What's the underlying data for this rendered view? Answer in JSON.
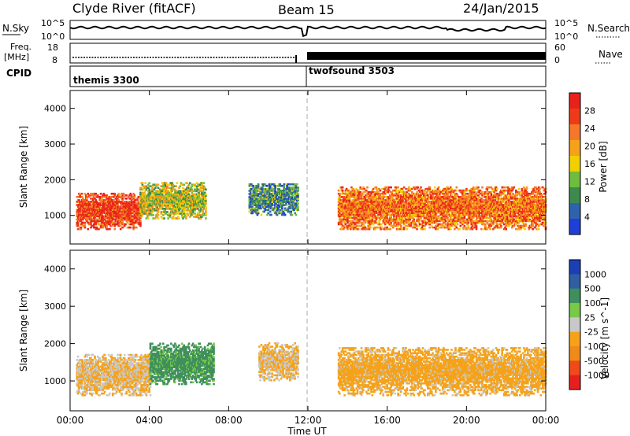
{
  "header": {
    "station": "Clyde River (fitACF)",
    "beam": "Beam 15",
    "date": "24/Jan/2015"
  },
  "noise_panel": {
    "left_label": "N.Sky",
    "left_ticks": [
      "10^5",
      "10^0"
    ],
    "right_label": "N.Search",
    "right_ticks": [
      "10^5",
      "10^0"
    ]
  },
  "freq_panel": {
    "left_label_1": "Freq.",
    "left_label_2": "[MHz]",
    "left_ticks": [
      "18",
      "8"
    ],
    "right_label": "Nave",
    "right_ticks": [
      "60",
      "0"
    ]
  },
  "cpid_panel": {
    "label": "CPID",
    "modes": [
      {
        "name": "themis 3300",
        "start": "00:00",
        "end": "11:50"
      },
      {
        "name": "twofsound 3503",
        "start": "11:50",
        "end": "24:00"
      }
    ]
  },
  "colors": {
    "power_scale": [
      "#1f3fd8",
      "#2e62ad",
      "#3d8a4f",
      "#6fbd3f",
      "#f0d000",
      "#f5a21a",
      "#f5782a",
      "#ef3a1a",
      "#e8221a"
    ],
    "velocity_scale": [
      "#1b3fb6",
      "#2f5fa0",
      "#3f8f5c",
      "#78c84a",
      "#c8c8c8",
      "#f5a21a",
      "#f08a1a",
      "#ef4a1a",
      "#e81f1f"
    ]
  },
  "chart_data": [
    {
      "type": "heatmap",
      "name": "power",
      "ylabel": "Slant Range [km]",
      "xlabel": "Time UT",
      "xlim": [
        "00:00",
        "24:00"
      ],
      "ylim": [
        200,
        4500
      ],
      "x_ticks": [
        "00:00",
        "04:00",
        "08:00",
        "12:00",
        "16:00",
        "20:00",
        "00:00"
      ],
      "y_ticks": [
        1000,
        2000,
        3000,
        4000
      ],
      "colorbar_label": "Power [dB]",
      "colorbar_ticks": [
        "28",
        "24",
        "20",
        "16",
        "12",
        "8",
        "4"
      ],
      "colorbar_range": [
        0,
        30
      ],
      "bands": [
        {
          "t0": 0.3,
          "t1": 3.5,
          "r0": 600,
          "r1": 1600,
          "level": 26
        },
        {
          "t0": 3.5,
          "t1": 6.8,
          "r0": 900,
          "r1": 1900,
          "level": 14
        },
        {
          "t0": 9.0,
          "t1": 11.5,
          "r0": 1000,
          "r1": 1900,
          "level": 8
        },
        {
          "t0": 13.5,
          "t1": 24.0,
          "r0": 600,
          "r1": 1800,
          "level": 22
        }
      ]
    },
    {
      "type": "heatmap",
      "name": "velocity",
      "ylabel": "Slant Range [km]",
      "xlabel": "Time UT",
      "xlim": [
        "00:00",
        "24:00"
      ],
      "ylim": [
        200,
        4500
      ],
      "x_ticks": [
        "00:00",
        "04:00",
        "08:00",
        "12:00",
        "16:00",
        "20:00",
        "00:00"
      ],
      "y_ticks": [
        1000,
        2000,
        3000,
        4000
      ],
      "colorbar_label": "Velocity [m s^-1]",
      "colorbar_ticks": [
        "1000",
        "500",
        "100",
        "25",
        "-25",
        "-100",
        "-500",
        "-1000"
      ],
      "bands": [
        {
          "t0": 0.3,
          "t1": 4.0,
          "r0": 600,
          "r1": 1700,
          "velocity": -100
        },
        {
          "t0": 4.0,
          "t1": 7.2,
          "r0": 900,
          "r1": 2000,
          "velocity": 300
        },
        {
          "t0": 9.5,
          "t1": 11.5,
          "r0": 1000,
          "r1": 2000,
          "velocity": -100
        },
        {
          "t0": 13.5,
          "t1": 24.0,
          "r0": 600,
          "r1": 1900,
          "velocity": -150
        }
      ]
    }
  ]
}
